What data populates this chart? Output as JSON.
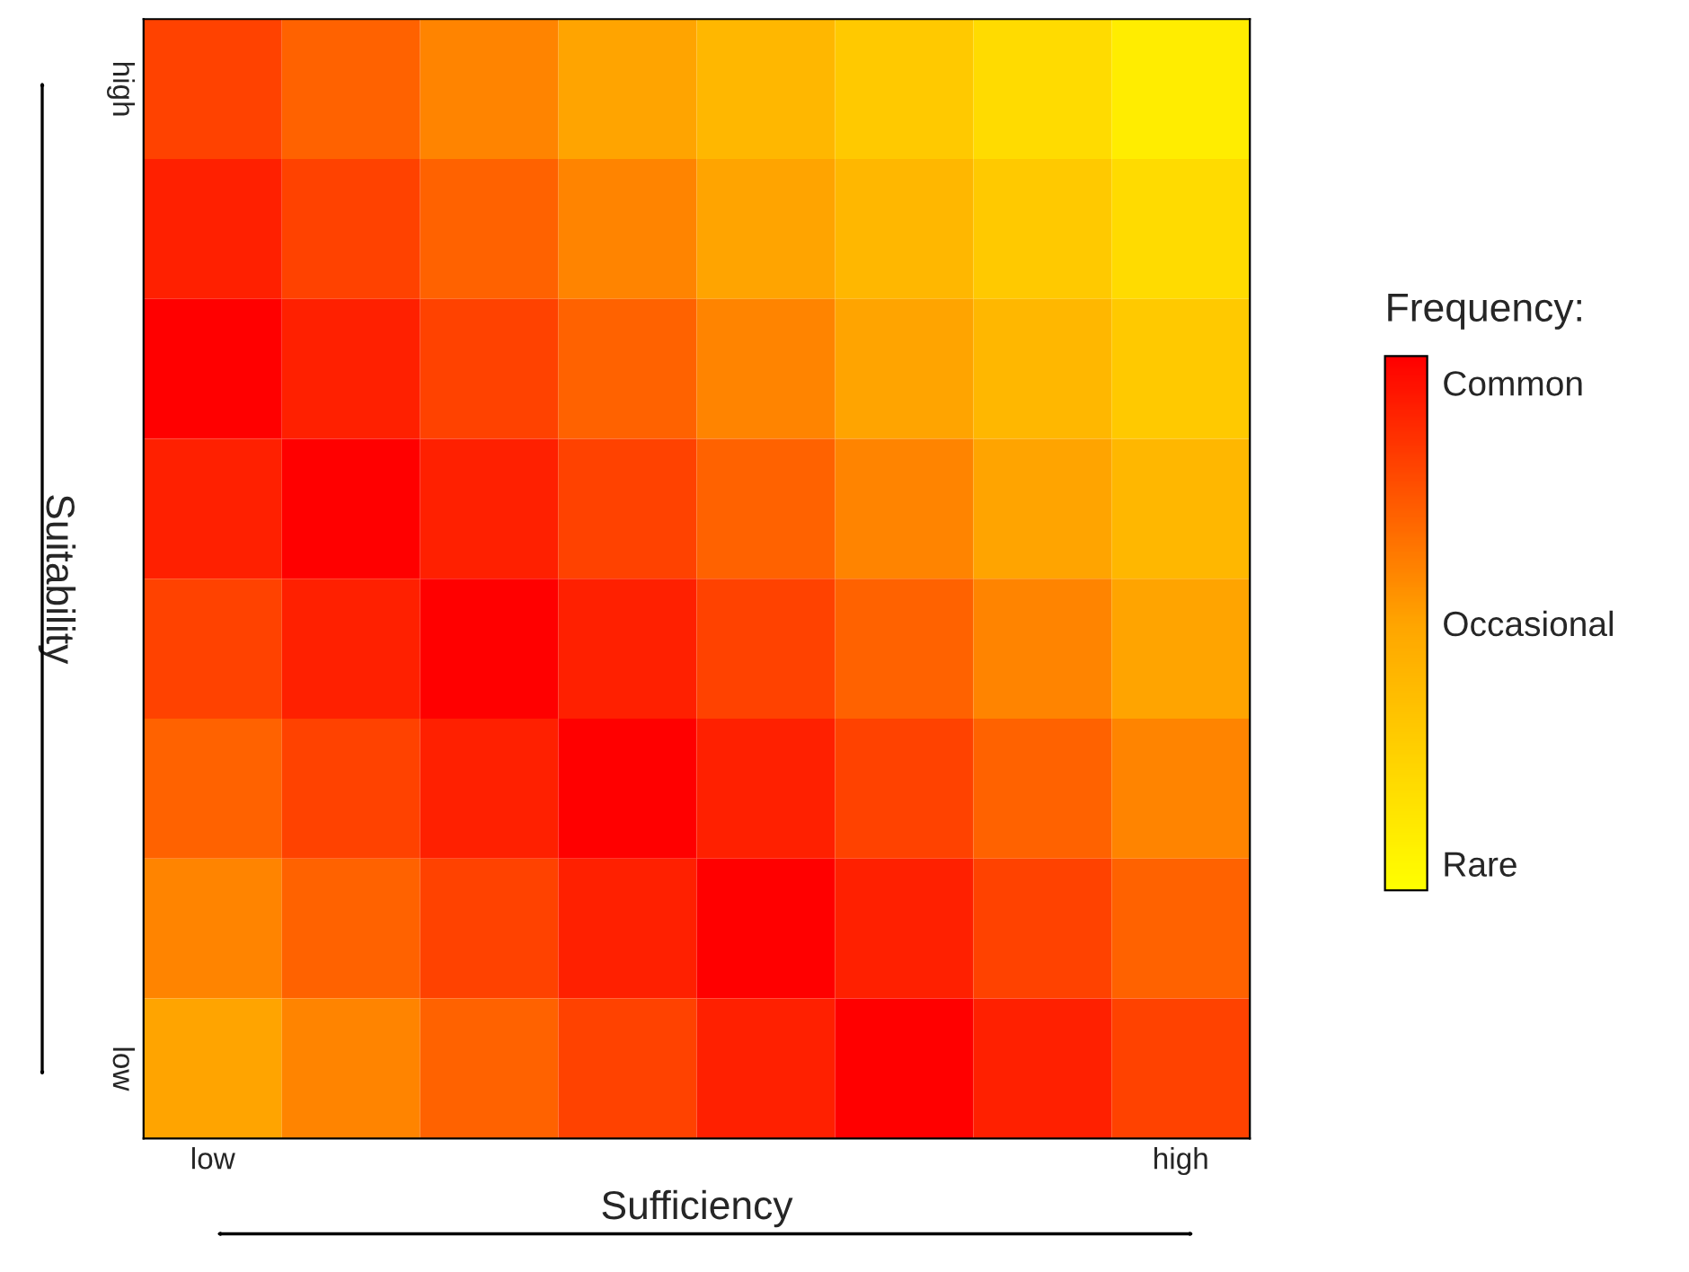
{
  "chart_data": {
    "type": "heatmap",
    "xlabel": "Sufficiency",
    "ylabel": "Suitability",
    "clabel": "Frequency:",
    "categories": [
      "low",
      null,
      null,
      null,
      null,
      null,
      null,
      "high"
    ],
    "y_categories": [
      "high",
      null,
      null,
      null,
      null,
      null,
      null,
      "low"
    ],
    "cells": [
      [
        0.8,
        0.7,
        0.6,
        0.5,
        0.4,
        0.3,
        0.2,
        0.1
      ],
      [
        0.9,
        0.8,
        0.7,
        0.6,
        0.5,
        0.4,
        0.3,
        0.2
      ],
      [
        1.0,
        0.9,
        0.8,
        0.7,
        0.6,
        0.5,
        0.4,
        0.3
      ],
      [
        0.9,
        1.0,
        0.9,
        0.8,
        0.7,
        0.6,
        0.5,
        0.4
      ],
      [
        0.8,
        0.9,
        1.0,
        0.9,
        0.8,
        0.7,
        0.6,
        0.5
      ],
      [
        0.7,
        0.8,
        0.9,
        1.0,
        0.9,
        0.8,
        0.7,
        0.6
      ],
      [
        0.6,
        0.7,
        0.8,
        0.9,
        1.0,
        0.9,
        0.8,
        0.7
      ],
      [
        0.5,
        0.6,
        0.7,
        0.8,
        0.9,
        1.0,
        0.9,
        0.8
      ]
    ],
    "clim": [
      0,
      1
    ],
    "cticks": [
      {
        "value": 0.05,
        "label": "Rare"
      },
      {
        "value": 0.5,
        "label": "Occasional"
      },
      {
        "value": 0.95,
        "label": "Common"
      }
    ]
  }
}
